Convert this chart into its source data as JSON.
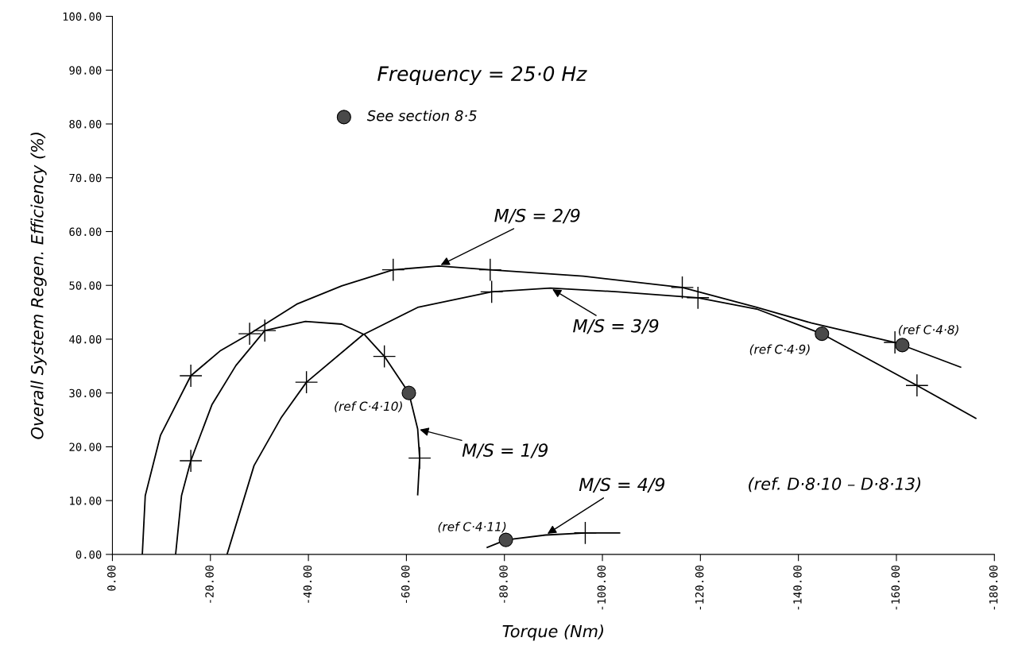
{
  "chart_data": {
    "type": "line",
    "xlabel": "Torque (Nm)",
    "ylabel": "Overall System Regen. Efficiency (%)",
    "xlim": [
      0,
      -180
    ],
    "xticks": [
      {
        "value": 0,
        "label": "0.00"
      },
      {
        "value": -20,
        "label": "-20.00"
      },
      {
        "value": -40,
        "label": "-40.00"
      },
      {
        "value": -60,
        "label": "-60.00"
      },
      {
        "value": -80,
        "label": "-80.00"
      },
      {
        "value": -100,
        "label": "-100.00"
      },
      {
        "value": -120,
        "label": "-120.00"
      },
      {
        "value": -140,
        "label": "-140.00"
      },
      {
        "value": -160,
        "label": "-160.00"
      },
      {
        "value": -180,
        "label": "-180.00"
      }
    ],
    "ylim": [
      0,
      100
    ],
    "yticks": [
      {
        "value": 0,
        "label": "0.00"
      },
      {
        "value": 10,
        "label": "10.00"
      },
      {
        "value": 20,
        "label": "20.00"
      },
      {
        "value": 30,
        "label": "30.00"
      },
      {
        "value": 40,
        "label": "40.00"
      },
      {
        "value": 50,
        "label": "50.00"
      },
      {
        "value": 60,
        "label": "60.00"
      },
      {
        "value": 70,
        "label": "70.00"
      },
      {
        "value": 80,
        "label": "80.00"
      },
      {
        "value": 90,
        "label": "90.00"
      },
      {
        "value": 100,
        "label": "100.00"
      }
    ],
    "grid": false,
    "legend": "top",
    "series": [
      {
        "color": "#000000",
        "marker": "none",
        "x": [
          -6.1,
          -6.7,
          -9.8,
          -16.0,
          -22.1,
          -28.0,
          -37.6,
          -46.8,
          -57.3,
          -66.6,
          -77.1,
          -96.1,
          -116.3,
          -131.5,
          -142.7,
          -159.7,
          -173.1
        ],
        "values": [
          0,
          10.9,
          22.1,
          33.2,
          37.9,
          41.0,
          46.5,
          49.9,
          52.9,
          53.6,
          52.9,
          51.7,
          49.6,
          45.9,
          43.0,
          39.4,
          34.8
        ]
      },
      {
        "color": "#000000",
        "marker": "none",
        "x": [
          -12.9,
          -14.1,
          -16.0,
          -20.3,
          -25.2,
          -31.1,
          -39.4,
          -46.8,
          -51.5,
          -55.5,
          -60.5,
          -62.3,
          -62.7,
          -62.3
        ],
        "values": [
          0,
          10.9,
          17.4,
          27.8,
          35.1,
          41.6,
          43.3,
          42.8,
          40.8,
          36.8,
          30.0,
          23.3,
          17.9,
          11.1
        ]
      },
      {
        "color": "#000000",
        "marker": "none",
        "x": [
          -23.4,
          -28.9,
          -34.5,
          -39.6,
          -51.1,
          -62.3,
          -77.4,
          -89.4,
          -103.2,
          -119.5,
          -131.5,
          -144.8,
          -164.2,
          -176.2
        ],
        "values": [
          0,
          16.5,
          25.5,
          32.0,
          40.8,
          45.9,
          48.8,
          49.5,
          48.8,
          47.7,
          45.6,
          41.0,
          31.4,
          25.3
        ]
      },
      {
        "color": "#000000",
        "marker": "none",
        "x": [
          -76.5,
          -80.3,
          -88.4,
          -96.5,
          -103.5
        ],
        "values": [
          1.3,
          2.7,
          3.6,
          4.0,
          4.0
        ]
      },
      {
        "type": "scatter",
        "color": "#000000",
        "marker": "cross",
        "x": [
          -16.0,
          -28.0,
          -57.3,
          -77.1,
          -116.3,
          -159.7,
          -16.0,
          -31.1,
          -55.5,
          -62.7,
          -39.6,
          -77.4,
          -119.5,
          -164.2,
          -96.5
        ],
        "values": [
          33.2,
          41.0,
          52.9,
          52.9,
          49.6,
          39.4,
          17.4,
          41.6,
          36.8,
          17.9,
          32.0,
          48.8,
          47.7,
          31.4,
          4.0
        ]
      },
      {
        "type": "scatter",
        "name": "See section 8·5",
        "color": "#4a4a4a",
        "marker": "circle",
        "x": [
          -60.5,
          -80.3,
          -144.8,
          -161.2
        ],
        "values": [
          30.0,
          2.7,
          41.0,
          38.9
        ]
      }
    ],
    "annotations": [
      "Frequency = 25·0 Hz",
      {
        "text": "M/S = 2/9",
        "x": -66.6,
        "y": 53.6
      },
      {
        "text": "M/S = 3/9",
        "x": -89.4,
        "y": 49.5
      },
      {
        "text": "M/S = 1/9",
        "x": -62.3,
        "y": 23.3
      },
      {
        "text": "M/S = 4/9",
        "x": -88.4,
        "y": 3.6
      },
      {
        "text": "(ref C·4·10)",
        "x": -60.5,
        "y": 30.0
      },
      {
        "text": "(ref C·4·11)",
        "x": -80.3,
        "y": 2.7
      },
      {
        "text": "(ref C·4·9)",
        "x": -144.8,
        "y": 41.0
      },
      {
        "text": "(ref C·4·8)",
        "x": -161.2,
        "y": 38.9
      },
      "(ref. D·8·10 – D·8·13)"
    ]
  }
}
